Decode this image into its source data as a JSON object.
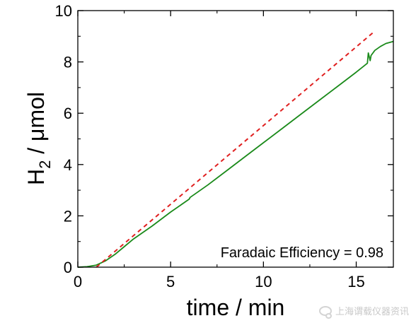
{
  "chart_data": {
    "type": "line",
    "title": "",
    "xlabel": "time / min",
    "ylabel_main": "H",
    "ylabel_sub": "2",
    "ylabel_rest": " / μmol",
    "xlim": [
      0,
      17
    ],
    "ylim": [
      0,
      10
    ],
    "xticks": [
      0,
      5,
      10,
      15
    ],
    "xtick_labels": [
      "0",
      "5",
      "10",
      "15"
    ],
    "yticks": [
      0,
      2,
      4,
      6,
      8,
      10
    ],
    "ytick_labels": [
      "0",
      "2",
      "4",
      "6",
      "8",
      "10"
    ],
    "grid": false,
    "legend": "none",
    "annotation": "Faradaic Efficiency = 0.98",
    "series": [
      {
        "style": "solid",
        "color": "#1a8a1a",
        "x": [
          0,
          0.5,
          1.0,
          1.5,
          2.0,
          2.5,
          3.0,
          4.0,
          5.0,
          6.0,
          6.05,
          7.0,
          8.0,
          9.0,
          10.0,
          11.0,
          12.0,
          13.0,
          14.0,
          15.0,
          15.6,
          15.65,
          15.7,
          15.75,
          15.8,
          16.0,
          16.3,
          16.6,
          17.0
        ],
        "y": [
          0.0,
          0.02,
          0.08,
          0.25,
          0.5,
          0.8,
          1.1,
          1.6,
          2.15,
          2.65,
          2.72,
          3.2,
          3.75,
          4.3,
          4.85,
          5.4,
          5.95,
          6.5,
          7.05,
          7.6,
          7.95,
          8.35,
          8.2,
          8.05,
          8.25,
          8.45,
          8.6,
          8.72,
          8.8
        ]
      },
      {
        "style": "dashed",
        "color": "#e02020",
        "x": [
          1.0,
          16.0
        ],
        "y": [
          0.0,
          9.2
        ]
      }
    ]
  },
  "watermark": {
    "icon": "wechat-icon",
    "text": "上海谓载仪器资讯"
  }
}
